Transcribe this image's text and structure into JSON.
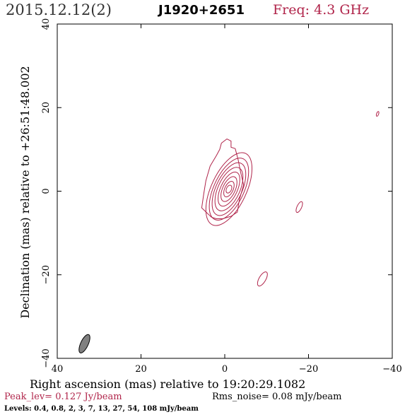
{
  "header": {
    "date": "2015.12.12(2)",
    "source": "J1920+2651",
    "freq": "Freq: 4.3 GHz"
  },
  "footer": {
    "peak": "Peak_lev=  0.127 Jy/beam",
    "rms": "Rms_noise= 0.08 mJy/beam",
    "levels": "Levels: 0.4,  0.8,    2,    3,    7,   13,   27,   54,  108 mJy/beam"
  },
  "colors": {
    "contour": "#b0244a",
    "beam": "#808080",
    "axis": "#000000"
  },
  "chart_data": {
    "type": "contour",
    "xlabel": "Right ascension (mas) relative to 19:20:29.1082",
    "ylabel": "Declination (mas) relative to +26:51:48.002",
    "xlim": [
      40,
      -40
    ],
    "ylim": [
      -40,
      40
    ],
    "xticks": [
      40,
      20,
      0,
      -20,
      -40
    ],
    "yticks": [
      -40,
      -20,
      0,
      20,
      40
    ],
    "xtick_labels": [
      "40",
      "20",
      "0",
      "−20",
      "−40"
    ],
    "ytick_labels": [
      "−40",
      "−20",
      "0",
      "20",
      "40"
    ],
    "contour_levels_mJy": [
      0.4,
      0.8,
      2,
      3,
      7,
      13,
      27,
      54,
      108
    ],
    "peak_Jy_per_beam": 0.127,
    "rms_mJy_per_beam": 0.08,
    "core": {
      "center": [
        -1.0,
        0.5
      ],
      "pa_deg": 25,
      "ellipses": [
        {
          "a": 1.0,
          "b": 0.6
        },
        {
          "a": 2.0,
          "b": 1.0
        },
        {
          "a": 3.2,
          "b": 1.5
        },
        {
          "a": 4.4,
          "b": 2.0
        },
        {
          "a": 5.6,
          "b": 2.6
        },
        {
          "a": 6.8,
          "b": 3.1
        },
        {
          "a": 8.0,
          "b": 3.6
        },
        {
          "a": 9.4,
          "b": 4.2
        }
      ]
    },
    "outer_contour": [
      [
        3.2,
        -6.2
      ],
      [
        5.5,
        -4.0
      ],
      [
        5.0,
        -0.5
      ],
      [
        4.5,
        2.5
      ],
      [
        3.5,
        6.0
      ],
      [
        2.0,
        8.5
      ],
      [
        1.2,
        10.0
      ],
      [
        0.8,
        11.5
      ],
      [
        -0.5,
        12.5
      ],
      [
        -1.5,
        12.0
      ],
      [
        -1.5,
        10.5
      ],
      [
        -2.5,
        10.2
      ],
      [
        -3.2,
        7.5
      ],
      [
        -3.8,
        4.5
      ],
      [
        -4.5,
        1.5
      ],
      [
        -3.5,
        -2.0
      ],
      [
        -3.0,
        -5.0
      ],
      [
        -1.5,
        -6.0
      ],
      [
        0.5,
        -6.6
      ],
      [
        2.0,
        -6.6
      ]
    ],
    "blobs": [
      {
        "center": [
          -36.5,
          18.5
        ],
        "a": 0.6,
        "b": 0.25,
        "pa_deg": 20
      },
      {
        "center": [
          -17.8,
          -3.8
        ],
        "a": 1.4,
        "b": 0.55,
        "pa_deg": 25
      },
      {
        "center": [
          -9.0,
          -21.0
        ],
        "a": 1.9,
        "b": 0.8,
        "pa_deg": 30
      }
    ],
    "beam": {
      "center": [
        33.5,
        -36.5
      ],
      "a": 2.4,
      "b": 0.9,
      "pa_deg": 25
    }
  }
}
